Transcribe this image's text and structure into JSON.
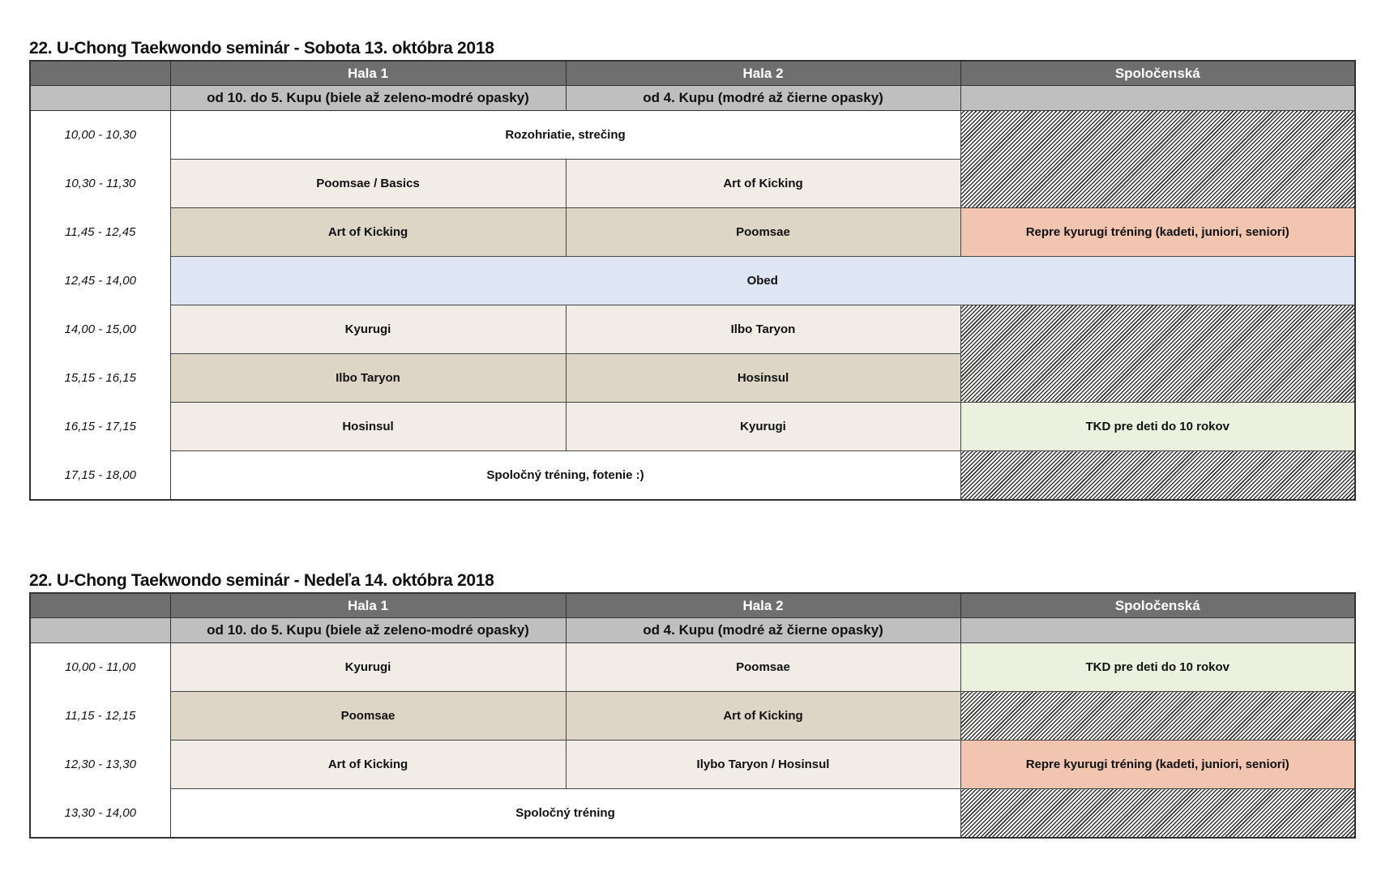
{
  "days": [
    {
      "title": "22. U-Chong Taekwondo seminár - Sobota 13. októbra 2018",
      "halls": [
        "Hala 1",
        "Hala 2",
        "Spoločenská"
      ],
      "subheaders": [
        "od 10. do 5. Kupu (biele až zeleno-modré opasky)",
        "od 4. Kupu (modré až čierne opasky)",
        ""
      ],
      "rows": [
        {
          "time": "10,00 - 10,30",
          "cells": [
            {
              "text": "Rozohriatie, strečing",
              "colspan": 2,
              "style": "white"
            },
            {
              "text": "",
              "rowspan": 2,
              "style": "hatch"
            }
          ]
        },
        {
          "time": "10,30 - 11,30",
          "cells": [
            {
              "text": "Poomsae / Basics",
              "style": "light"
            },
            {
              "text": "Art of Kicking",
              "style": "light"
            }
          ]
        },
        {
          "time": "11,45 - 12,45",
          "cells": [
            {
              "text": "Art of Kicking",
              "style": "dark"
            },
            {
              "text": "Poomsae",
              "style": "dark"
            },
            {
              "text": "Repre kyurugi tréning (kadeti, juniori, seniori)",
              "style": "salmon"
            }
          ]
        },
        {
          "time": "12,45 - 14,00",
          "cells": [
            {
              "text": "Obed",
              "colspan": 3,
              "style": "blue"
            }
          ]
        },
        {
          "time": "14,00 - 15,00",
          "cells": [
            {
              "text": "Kyurugi",
              "style": "light"
            },
            {
              "text": "Ilbo Taryon",
              "style": "light"
            },
            {
              "text": "",
              "rowspan": 2,
              "style": "hatch"
            }
          ]
        },
        {
          "time": "15,15 - 16,15",
          "cells": [
            {
              "text": "Ilbo Taryon",
              "style": "dark"
            },
            {
              "text": "Hosinsul",
              "style": "dark"
            }
          ]
        },
        {
          "time": "16,15 - 17,15",
          "cells": [
            {
              "text": "Hosinsul",
              "style": "light"
            },
            {
              "text": "Kyurugi",
              "style": "light"
            },
            {
              "text": "TKD pre deti do 10 rokov",
              "style": "green"
            }
          ]
        },
        {
          "time": "17,15 - 18,00",
          "cells": [
            {
              "text": "Spoločný tréning, fotenie :)",
              "colspan": 2,
              "style": "white"
            },
            {
              "text": "",
              "style": "hatch"
            }
          ]
        }
      ]
    },
    {
      "title": "22. U-Chong Taekwondo seminár - Nedeľa 14. októbra 2018",
      "halls": [
        "Hala 1",
        "Hala 2",
        "Spoločenská"
      ],
      "subheaders": [
        "od 10. do 5. Kupu (biele až zeleno-modré opasky)",
        "od 4. Kupu (modré až čierne opasky)",
        ""
      ],
      "rows": [
        {
          "time": "10,00 - 11,00",
          "cells": [
            {
              "text": "Kyurugi",
              "style": "light"
            },
            {
              "text": "Poomsae",
              "style": "light"
            },
            {
              "text": "TKD pre deti do 10 rokov",
              "style": "green"
            }
          ]
        },
        {
          "time": "11,15 - 12,15",
          "cells": [
            {
              "text": "Poomsae",
              "style": "dark"
            },
            {
              "text": "Art of Kicking",
              "style": "dark"
            },
            {
              "text": "",
              "style": "hatch"
            }
          ]
        },
        {
          "time": "12,30 - 13,30",
          "cells": [
            {
              "text": "Art of Kicking",
              "style": "light"
            },
            {
              "text": "Ilybo Taryon / Hosinsul",
              "style": "light"
            },
            {
              "text": "Repre kyurugi tréning (kadeti, juniori, seniori)",
              "style": "salmon"
            }
          ]
        },
        {
          "time": "13,30 - 14,00",
          "cells": [
            {
              "text": "Spoločný tréning",
              "colspan": 2,
              "style": "white"
            },
            {
              "text": "",
              "style": "hatch"
            }
          ]
        }
      ]
    }
  ]
}
